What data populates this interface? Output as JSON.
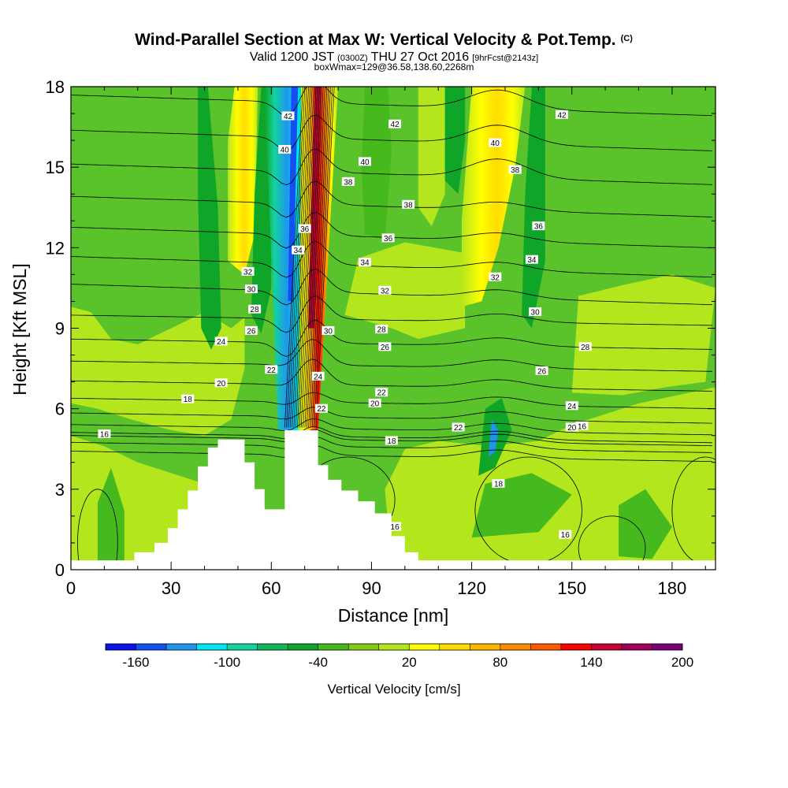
{
  "header": {
    "title": "Wind-Parallel Section at Max W: Vertical Velocity & Pot.Temp.",
    "title_suffix": "(C)",
    "valid_prefix": "Valid 1200 JST",
    "valid_utc": "(0300Z)",
    "valid_date": "THU 27 Oct 2016",
    "forecast": "[9hrFcst@2143z]",
    "boxinfo": "boxWmax=129@36.58,138.60,2268m"
  },
  "chart_data": {
    "type": "heatmap",
    "title": "Wind-Parallel Section at Max W: Vertical Velocity & Pot.Temp.",
    "xlabel": "Distance [nm]",
    "ylabel": "Height [Kft MSL]",
    "xlim": [
      0,
      193
    ],
    "ylim": [
      0,
      18
    ],
    "x_ticks": [
      "0",
      "30",
      "60",
      "90",
      "120",
      "150",
      "180"
    ],
    "y_ticks": [
      "0",
      "3",
      "6",
      "9",
      "12",
      "15",
      "18"
    ],
    "colorbar": {
      "label": "Vertical Velocity [cm/s]",
      "tick_labels": [
        "-160",
        "-100",
        "-40",
        "20",
        "80",
        "140",
        "200"
      ],
      "colors": [
        "#0a14e6",
        "#1450f0",
        "#1e96f0",
        "#00e6f0",
        "#14d2a0",
        "#14b45a",
        "#0fa528",
        "#46b91e",
        "#82cd14",
        "#b4e61e",
        "#ffff00",
        "#ffdc00",
        "#ffb400",
        "#ff8c00",
        "#ff5a00",
        "#ff0000",
        "#c80032",
        "#a0005a",
        "#780078"
      ]
    },
    "background_field": "Vertical Velocity (cm/s), filled contours",
    "contour_field": "Potential Temperature (C), line contours",
    "theta_labels": [
      "16",
      "18",
      "20",
      "22",
      "24",
      "26",
      "28",
      "30",
      "32",
      "34",
      "36",
      "38",
      "40",
      "42"
    ],
    "max_w_location_nm": 74,
    "max_w_value_cms": 129,
    "terrain_kft": [
      [
        0,
        0.35
      ],
      [
        19,
        0.35
      ],
      [
        19,
        0.65
      ],
      [
        25,
        0.65
      ],
      [
        25,
        1.0
      ],
      [
        29,
        1.0
      ],
      [
        29,
        1.55
      ],
      [
        32,
        1.55
      ],
      [
        32,
        2.25
      ],
      [
        35,
        2.25
      ],
      [
        35,
        2.95
      ],
      [
        38,
        2.95
      ],
      [
        38,
        3.85
      ],
      [
        41,
        3.85
      ],
      [
        41,
        4.55
      ],
      [
        44,
        4.55
      ],
      [
        44,
        4.85
      ],
      [
        52,
        4.85
      ],
      [
        52,
        4.0
      ],
      [
        55,
        4.0
      ],
      [
        55,
        3.0
      ],
      [
        58,
        3.0
      ],
      [
        58,
        2.25
      ],
      [
        64,
        2.25
      ],
      [
        64,
        5.2
      ],
      [
        74,
        5.2
      ],
      [
        74,
        3.9
      ],
      [
        77,
        3.9
      ],
      [
        77,
        3.35
      ],
      [
        81,
        3.35
      ],
      [
        81,
        2.95
      ],
      [
        86,
        2.95
      ],
      [
        86,
        2.55
      ],
      [
        91,
        2.55
      ],
      [
        91,
        2.1
      ],
      [
        96,
        2.1
      ],
      [
        96,
        1.25
      ],
      [
        100,
        1.25
      ],
      [
        100,
        0.65
      ],
      [
        104,
        0.65
      ],
      [
        104,
        0.35
      ],
      [
        193,
        0.35
      ]
    ]
  },
  "colors": {
    "background_field": "#5ac22a",
    "terrain": "#ffffff",
    "contour_line": "#000000"
  }
}
